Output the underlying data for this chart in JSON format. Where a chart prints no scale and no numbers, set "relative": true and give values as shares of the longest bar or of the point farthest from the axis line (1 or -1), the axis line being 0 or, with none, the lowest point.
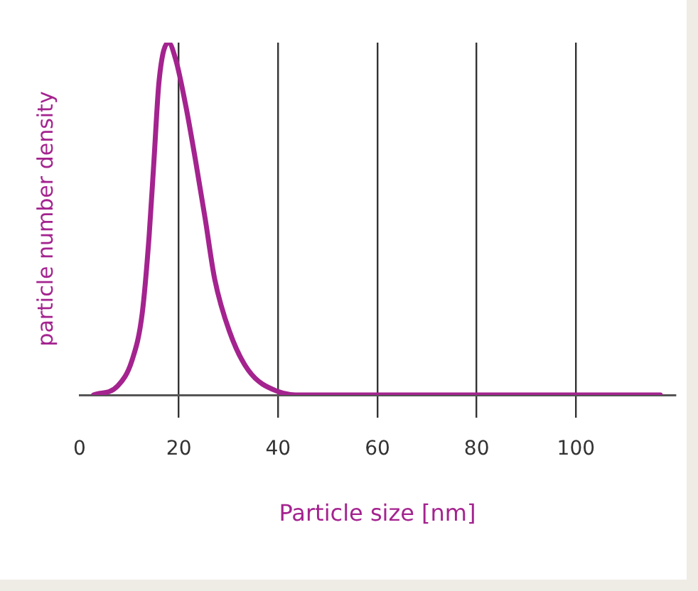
{
  "chart_data": {
    "type": "line",
    "relative": true,
    "xlabel": "Particle size [nm]",
    "ylabel": "particle number density",
    "xlim": [
      0,
      120
    ],
    "xticks": [
      0,
      20,
      40,
      60,
      80,
      100
    ],
    "grid": "x",
    "legend": false,
    "marker": "none",
    "series": [
      {
        "color": "#a4238f",
        "x": [
          2.8,
          7.7,
          10.6,
          12.6,
          14.0,
          15.0,
          16.0,
          17.9,
          19.4,
          21.4,
          23.3,
          25.3,
          27.2,
          30.2,
          34.0,
          39.9,
          45,
          117
        ],
        "values": [
          0,
          0.026,
          0.1,
          0.23,
          0.45,
          0.67,
          0.89,
          1,
          0.95,
          0.82,
          0.67,
          0.5,
          0.33,
          0.18,
          0.07,
          0.01,
          0,
          0
        ]
      }
    ]
  }
}
